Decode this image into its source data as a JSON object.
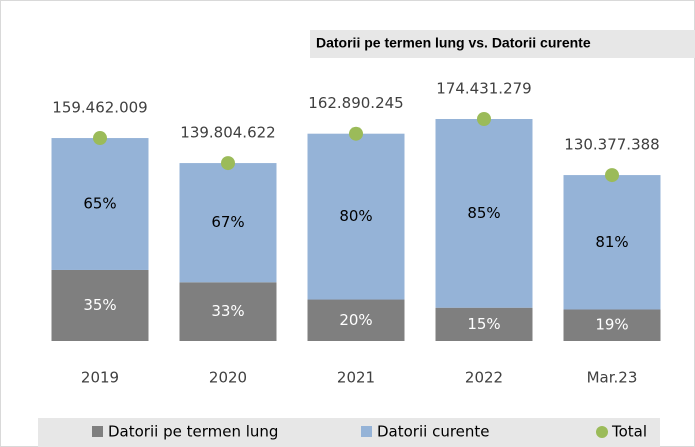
{
  "chart_data": {
    "type": "bar",
    "stacked": true,
    "title": "Datorii pe termen lung vs. Datorii curente",
    "categories": [
      "2019",
      "2020",
      "2021",
      "2022",
      "Mar.23"
    ],
    "series": [
      {
        "name": "Datorii pe termen lung",
        "color": "#7f7f7f",
        "values": [
          35,
          33,
          20,
          15,
          19
        ],
        "value_labels": [
          "35%",
          "33%",
          "20%",
          "15%",
          "19%"
        ]
      },
      {
        "name": "Datorii curente",
        "color": "#95b3d7",
        "values": [
          65,
          67,
          80,
          85,
          81
        ],
        "value_labels": [
          "65%",
          "67%",
          "80%",
          "85%",
          "81%"
        ]
      },
      {
        "name": "Total",
        "color": "#9bbb59",
        "values": [
          159462009,
          139804622,
          162890245,
          174431279,
          130377388
        ],
        "value_labels": [
          "159.462.009",
          "139.804.622",
          "162.890.245",
          "174.431.279",
          "130.377.388"
        ]
      }
    ]
  }
}
